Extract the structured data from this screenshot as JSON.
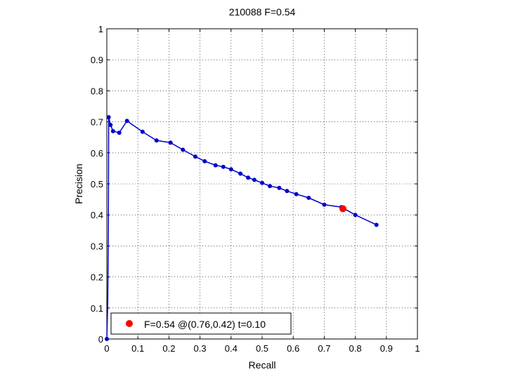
{
  "chart_data": {
    "type": "line",
    "title": "210088 F=0.54",
    "xlabel": "Recall",
    "ylabel": "Precision",
    "xlim": [
      0,
      1
    ],
    "ylim": [
      0,
      1
    ],
    "grid": true,
    "x_ticks": [
      "0",
      "0.1",
      "0.2",
      "0.3",
      "0.4",
      "0.5",
      "0.6",
      "0.7",
      "0.8",
      "0.9",
      "1"
    ],
    "y_ticks": [
      "0",
      "0.1",
      "0.2",
      "0.3",
      "0.4",
      "0.5",
      "0.6",
      "0.7",
      "0.8",
      "0.9",
      "1"
    ],
    "series": [
      {
        "color": "#0000cc",
        "x": [
          0.0,
          0.003,
          0.005,
          0.006,
          0.012,
          0.02,
          0.04,
          0.065,
          0.115,
          0.16,
          0.205,
          0.245,
          0.285,
          0.315,
          0.35,
          0.375,
          0.4,
          0.43,
          0.455,
          0.475,
          0.5,
          0.525,
          0.555,
          0.58,
          0.61,
          0.65,
          0.7,
          0.755,
          0.8,
          0.868
        ],
        "y": [
          0.0,
          0.12,
          0.36,
          0.715,
          0.69,
          0.67,
          0.665,
          0.703,
          0.668,
          0.64,
          0.633,
          0.61,
          0.588,
          0.573,
          0.56,
          0.555,
          0.547,
          0.533,
          0.52,
          0.513,
          0.503,
          0.493,
          0.487,
          0.477,
          0.467,
          0.455,
          0.433,
          0.425,
          0.4,
          0.368
        ],
        "markers_from_index": 3
      }
    ],
    "highlight_point": {
      "x": 0.76,
      "y": 0.42,
      "color": "#ff0000"
    },
    "legend": {
      "label": "F=0.54 @(0.76,0.42) t=0.10",
      "placement": "bottom-left"
    }
  }
}
